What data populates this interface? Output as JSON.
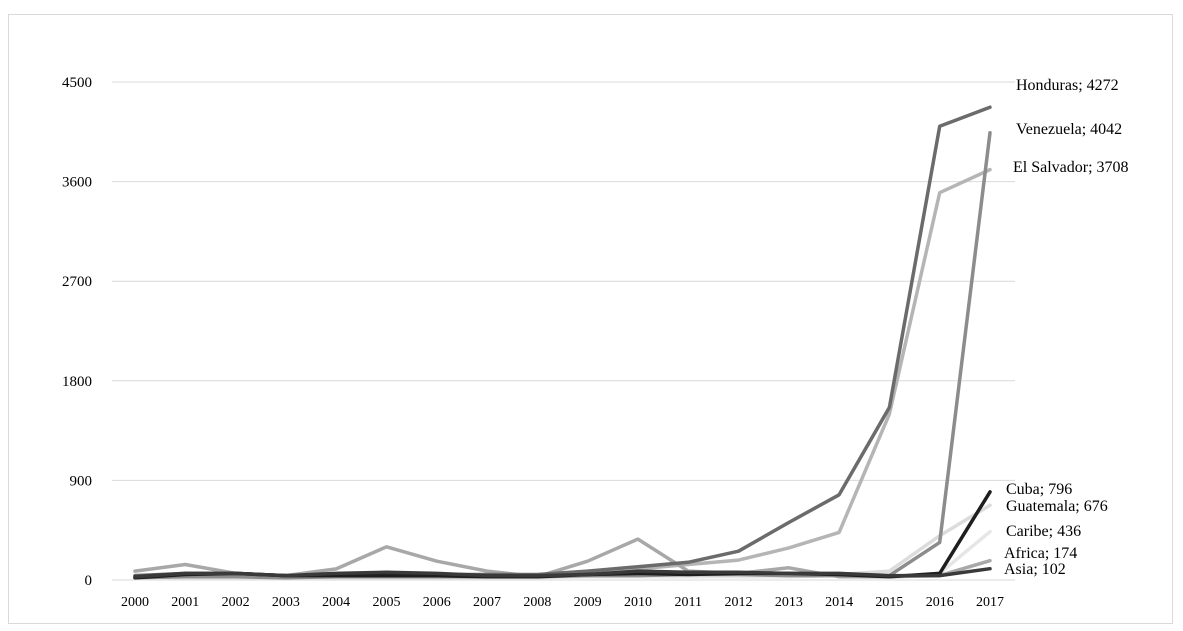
{
  "chart_data": {
    "type": "line",
    "title": "",
    "xlabel": "",
    "ylabel": "",
    "ylim": [
      0,
      4500
    ],
    "yticks": [
      0,
      900,
      1800,
      2700,
      3600,
      4500
    ],
    "grid": "horizontal",
    "legend": "none",
    "categories": [
      "2000",
      "2001",
      "2002",
      "2003",
      "2004",
      "2005",
      "2006",
      "2007",
      "2008",
      "2009",
      "2010",
      "2011",
      "2012",
      "2013",
      "2014",
      "2015",
      "2016",
      "2017"
    ],
    "series": [
      {
        "name": "Honduras",
        "end_label": "Honduras; 4272",
        "color": "#6b6b6b",
        "width": 3.5,
        "values": [
          40,
          60,
          60,
          40,
          50,
          50,
          50,
          50,
          50,
          80,
          120,
          160,
          260,
          520,
          770,
          1560,
          4100,
          4272
        ]
      },
      {
        "name": "Venezuela",
        "end_label": "Venezuela; 4042",
        "color": "#8c8c8c",
        "width": 3.5,
        "values": [
          20,
          30,
          30,
          20,
          30,
          30,
          30,
          30,
          30,
          40,
          40,
          50,
          50,
          40,
          40,
          40,
          340,
          4042
        ]
      },
      {
        "name": "El Salvador",
        "end_label": "El Salvador; 3708",
        "color": "#b5b5b5",
        "width": 3.5,
        "values": [
          40,
          50,
          50,
          40,
          50,
          50,
          40,
          40,
          40,
          70,
          100,
          140,
          180,
          290,
          430,
          1500,
          3500,
          3708
        ]
      },
      {
        "name": "Cuba",
        "end_label": "Cuba; 796",
        "color": "#1e1e1e",
        "width": 3.5,
        "values": [
          20,
          50,
          60,
          40,
          40,
          40,
          40,
          30,
          30,
          50,
          60,
          50,
          60,
          60,
          50,
          30,
          60,
          796
        ]
      },
      {
        "name": "Guatemala",
        "end_label": "Guatemala; 676",
        "color": "#dcdcdc",
        "width": 3.5,
        "values": [
          30,
          40,
          40,
          30,
          40,
          40,
          40,
          40,
          40,
          60,
          80,
          60,
          60,
          50,
          50,
          80,
          400,
          676
        ]
      },
      {
        "name": "Caribe",
        "end_label": "Caribe; 436",
        "color": "#e6e6e6",
        "width": 3.5,
        "values": [
          10,
          20,
          20,
          20,
          20,
          20,
          20,
          20,
          20,
          30,
          30,
          30,
          30,
          30,
          40,
          30,
          60,
          436
        ]
      },
      {
        "name": "Africa",
        "end_label": "Africa; 174",
        "color": "#a8a8a8",
        "width": 3.5,
        "values": [
          80,
          140,
          60,
          40,
          100,
          300,
          170,
          80,
          30,
          170,
          370,
          80,
          60,
          110,
          30,
          30,
          40,
          174
        ]
      },
      {
        "name": "Asia",
        "end_label": "Asia; 102",
        "color": "#3a3a3a",
        "width": 3.5,
        "values": [
          30,
          60,
          60,
          40,
          60,
          70,
          60,
          40,
          40,
          50,
          80,
          70,
          70,
          60,
          60,
          40,
          40,
          102
        ]
      }
    ]
  }
}
